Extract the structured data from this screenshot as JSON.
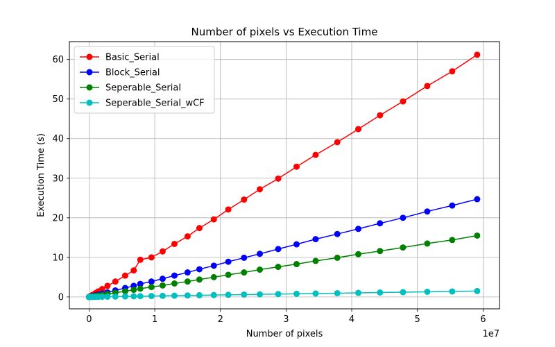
{
  "chart_data": {
    "type": "line",
    "title": "Number of pixels vs Execution Time",
    "xlabel": "Number of pixels",
    "ylabel": "Execution Time (s)",
    "x_offset_label": "1e7",
    "xlim": [
      -0.3,
      6.25
    ],
    "ylim": [
      -3,
      64.5
    ],
    "xticks": [
      0,
      1,
      2,
      3,
      4,
      5,
      6
    ],
    "xtick_labels": [
      "0",
      "1",
      "2",
      "3",
      "4",
      "5",
      "6"
    ],
    "yticks": [
      0,
      10,
      20,
      30,
      40,
      50,
      60
    ],
    "ytick_labels": [
      "0",
      "10",
      "20",
      "30",
      "40",
      "50",
      "60"
    ],
    "grid": true,
    "legend_position": "top-left",
    "x": [
      0,
      0.01,
      0.02,
      0.04,
      0.06,
      0.1,
      0.14,
      0.2,
      0.28,
      0.4,
      0.55,
      0.68,
      0.78,
      0.95,
      1.12,
      1.3,
      1.5,
      1.68,
      1.9,
      2.12,
      2.36,
      2.6,
      2.88,
      3.16,
      3.45,
      3.78,
      4.1,
      4.43,
      4.78,
      5.15,
      5.53,
      5.91
    ],
    "series": [
      {
        "name": "Basic_Serial",
        "color": "#ff0000",
        "values": [
          0,
          0.1,
          0.2,
          0.4,
          0.6,
          1.0,
          1.4,
          2.0,
          2.8,
          3.9,
          5.4,
          6.7,
          9.4,
          10.0,
          11.5,
          13.4,
          15.3,
          17.4,
          19.6,
          22.1,
          24.6,
          27.2,
          29.9,
          32.9,
          35.9,
          39.1,
          42.4,
          45.9,
          49.4,
          53.3,
          57.0,
          61.2
        ]
      },
      {
        "name": "Block_Serial",
        "color": "#0000ff",
        "values": [
          0,
          0.04,
          0.08,
          0.16,
          0.25,
          0.42,
          0.58,
          0.83,
          1.15,
          1.65,
          2.25,
          2.8,
          3.3,
          3.9,
          4.6,
          5.4,
          6.2,
          7.0,
          7.9,
          8.9,
          9.9,
          10.9,
          12.1,
          13.3,
          14.6,
          15.9,
          17.2,
          18.6,
          20.0,
          21.6,
          23.1,
          24.7
        ]
      },
      {
        "name": "Seperable_Serial",
        "color": "#008000",
        "values": [
          0,
          0.03,
          0.06,
          0.11,
          0.16,
          0.27,
          0.37,
          0.53,
          0.74,
          1.05,
          1.45,
          1.8,
          2.1,
          2.5,
          2.9,
          3.4,
          3.9,
          4.4,
          5.0,
          5.6,
          6.2,
          6.9,
          7.6,
          8.3,
          9.1,
          9.9,
          10.8,
          11.6,
          12.5,
          13.5,
          14.4,
          15.5
        ]
      },
      {
        "name": "Seperable_Serial_wCF",
        "color": "#00bfbf",
        "values": [
          0,
          0.003,
          0.005,
          0.01,
          0.015,
          0.025,
          0.035,
          0.05,
          0.07,
          0.1,
          0.14,
          0.17,
          0.2,
          0.24,
          0.28,
          0.33,
          0.38,
          0.43,
          0.48,
          0.54,
          0.6,
          0.66,
          0.73,
          0.8,
          0.87,
          0.95,
          1.03,
          1.12,
          1.2,
          1.3,
          1.39,
          1.5
        ]
      }
    ]
  }
}
